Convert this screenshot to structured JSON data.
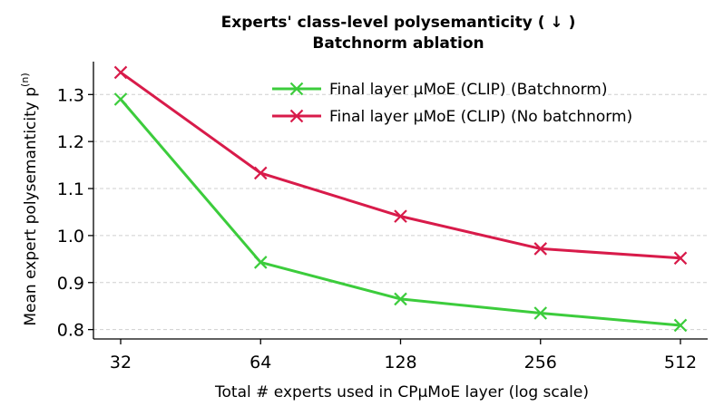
{
  "chart_data": {
    "type": "line",
    "title": "Experts' class-level polysemanticity ( ↓ )",
    "subtitle": "Batchnorm ablation",
    "xlabel": "Total # experts used in CPμMoE layer (log scale)",
    "ylabel": "Mean expert polysemanticity p",
    "ylabel_sup": "(n)",
    "x_scale": "log2",
    "x": [
      32,
      64,
      128,
      256,
      512
    ],
    "x_tick_labels": [
      "32",
      "64",
      "128",
      "256",
      "512"
    ],
    "ylim": [
      0.78,
      1.37
    ],
    "y_ticks": [
      0.8,
      0.9,
      1.0,
      1.1,
      1.2,
      1.3
    ],
    "y_tick_labels": [
      "0.8",
      "0.9",
      "1.0",
      "1.1",
      "1.2",
      "1.3"
    ],
    "grid": "horizontal dashed",
    "legend_position": "top-right",
    "series": [
      {
        "name": "Final layer μMoE (CLIP) (Batchnorm)",
        "color": "#3ccc3c",
        "marker": "x",
        "values": [
          1.29,
          0.943,
          0.865,
          0.835,
          0.809
        ]
      },
      {
        "name": "Final layer μMoE (CLIP) (No batchnorm)",
        "color": "#d81b4a",
        "marker": "x",
        "values": [
          1.347,
          1.133,
          1.041,
          0.972,
          0.952
        ]
      }
    ]
  }
}
